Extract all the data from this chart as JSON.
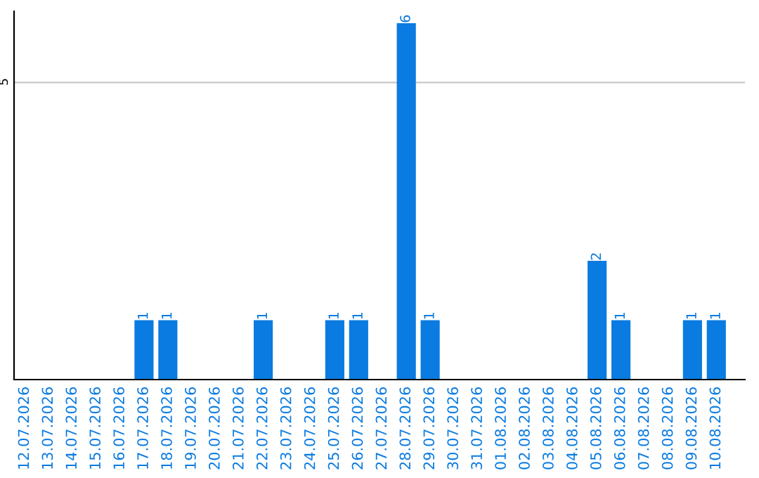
{
  "chart_data": {
    "type": "bar",
    "categories": [
      "12.07.2026",
      "13.07.2026",
      "14.07.2026",
      "15.07.2026",
      "16.07.2026",
      "17.07.2026",
      "18.07.2026",
      "19.07.2026",
      "20.07.2026",
      "21.07.2026",
      "22.07.2026",
      "23.07.2026",
      "24.07.2026",
      "25.07.2026",
      "26.07.2026",
      "27.07.2026",
      "28.07.2026",
      "29.07.2026",
      "30.07.2026",
      "31.07.2026",
      "01.08.2026",
      "02.08.2026",
      "03.08.2026",
      "04.08.2026",
      "05.08.2026",
      "06.08.2026",
      "07.08.2026",
      "08.08.2026",
      "09.08.2026",
      "10.08.2026"
    ],
    "values": [
      0,
      0,
      0,
      0,
      0,
      1,
      1,
      0,
      0,
      0,
      1,
      0,
      0,
      1,
      1,
      0,
      6,
      1,
      0,
      0,
      0,
      0,
      0,
      0,
      2,
      1,
      0,
      0,
      1,
      1
    ],
    "value_labels": [
      null,
      null,
      null,
      null,
      null,
      "1",
      "1",
      null,
      null,
      null,
      "1",
      null,
      null,
      "1",
      "1",
      null,
      "6",
      "1",
      null,
      null,
      null,
      null,
      null,
      null,
      "2",
      "1",
      null,
      null,
      "1",
      "1"
    ],
    "color": "#0a7be0",
    "ylim": [
      0,
      6.2
    ],
    "yticks": [
      5
    ],
    "grid": "y"
  }
}
